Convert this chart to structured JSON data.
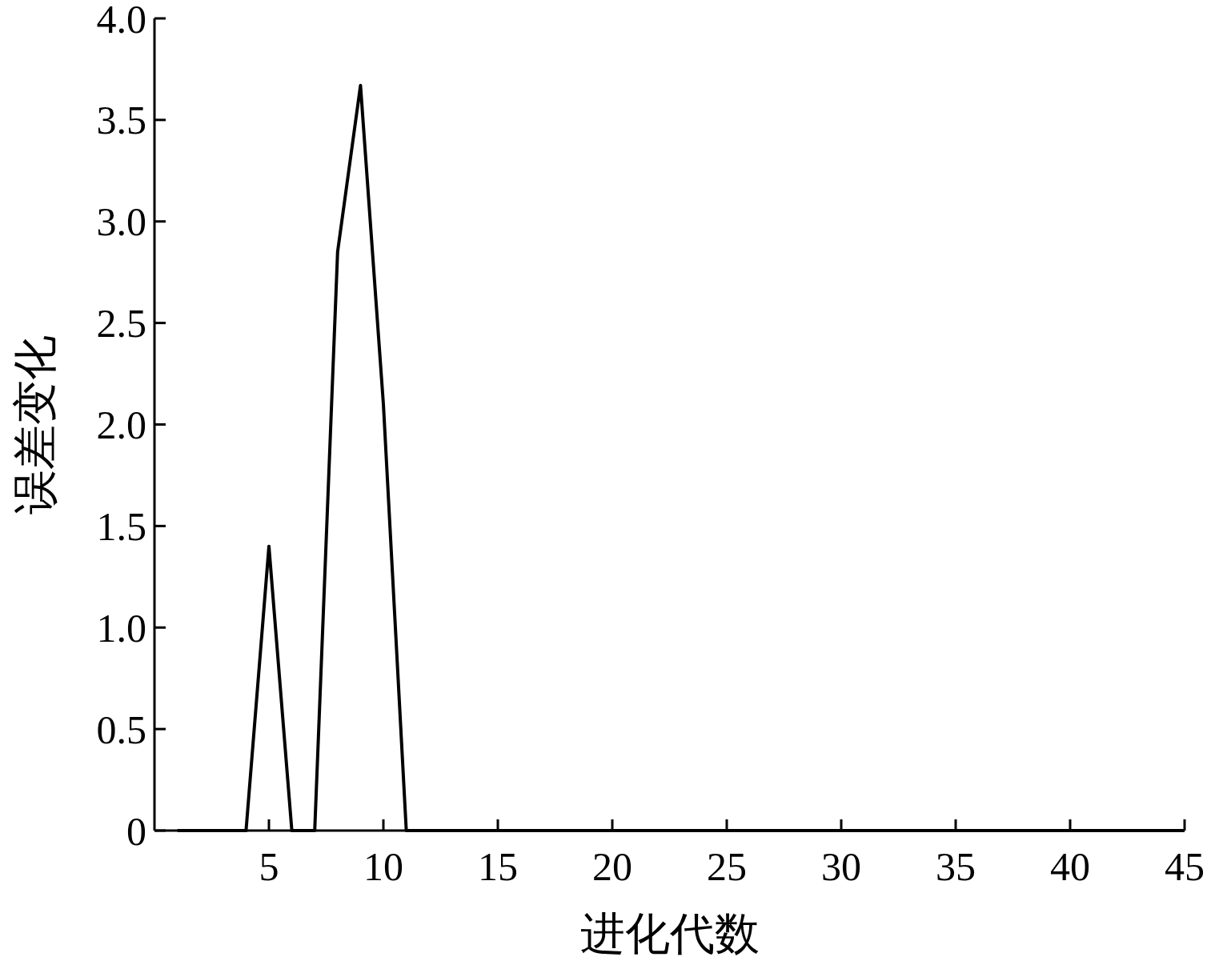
{
  "chart_data": {
    "type": "line",
    "xlabel": "进化代数",
    "ylabel": "误差变化",
    "x": [
      1,
      2,
      3,
      4,
      5,
      6,
      7,
      8,
      9,
      10,
      11,
      12,
      13,
      14,
      15,
      16,
      17,
      18,
      19,
      20,
      21,
      22,
      23,
      24,
      25,
      26,
      27,
      28,
      29,
      30,
      31,
      32,
      33,
      34,
      35,
      36,
      37,
      38,
      39,
      40,
      41,
      42,
      43,
      44,
      45
    ],
    "series": [
      {
        "color": "#000000",
        "values": [
          0,
          0,
          0,
          0,
          1.4,
          0,
          0,
          2.85,
          3.67,
          2.1,
          0,
          0,
          0,
          0,
          0,
          0,
          0,
          0,
          0,
          0,
          0,
          0,
          0,
          0,
          0,
          0,
          0,
          0,
          0,
          0,
          0,
          0,
          0,
          0,
          0,
          0,
          0,
          0,
          0,
          0,
          0,
          0,
          0,
          0,
          0
        ]
      }
    ],
    "xlim": [
      0,
      45
    ],
    "xticks": [
      5,
      10,
      15,
      20,
      25,
      30,
      35,
      40,
      45
    ],
    "ylim": [
      0,
      4
    ],
    "yticks": [
      0,
      0.5,
      {
        "value": 1,
        "label": "1.0"
      },
      1.5,
      {
        "value": 2,
        "label": "2.0"
      },
      2.5,
      {
        "value": 3,
        "label": "3.0"
      },
      3.5,
      {
        "value": 4,
        "label": "4.0"
      }
    ],
    "grid": false,
    "marker": "none",
    "line_style": "solid"
  }
}
